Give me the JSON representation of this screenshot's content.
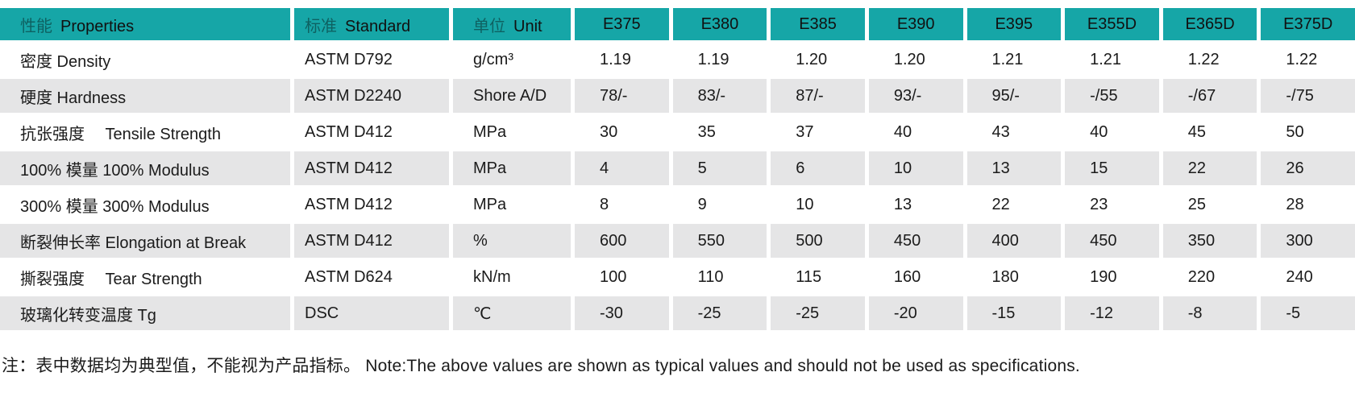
{
  "theme": {
    "header_bg": "#16a6a7",
    "row_alt_bg": "#e5e5e6",
    "row_bg": "#ffffff",
    "text_color": "#1b1b1b"
  },
  "table": {
    "header": {
      "properties": {
        "zh": "性能",
        "en": "Properties"
      },
      "standard": {
        "zh": "标准",
        "en": "Standard"
      },
      "unit": {
        "zh": "单位",
        "en": "Unit"
      },
      "grades": [
        "E375",
        "E380",
        "E385",
        "E390",
        "E395",
        "E355D",
        "E365D",
        "E375D"
      ]
    },
    "rows": [
      {
        "label": "密度  Density",
        "standard": "ASTM D792",
        "unit": "g/cm³",
        "values": [
          "1.19",
          "1.19",
          "1.20",
          "1.20",
          "1.21",
          "1.21",
          "1.22",
          "1.22"
        ]
      },
      {
        "label": "硬度  Hardness",
        "standard": "ASTM D2240",
        "unit": "Shore A/D",
        "values": [
          "78/-",
          "83/-",
          "87/-",
          "93/-",
          "95/-",
          "-/55",
          "-/67",
          "-/75"
        ]
      },
      {
        "label": "抗张强度　 Tensile Strength",
        "standard": "ASTM D412",
        "unit": "MPa",
        "values": [
          "30",
          "35",
          "37",
          "40",
          "43",
          "40",
          "45",
          "50"
        ]
      },
      {
        "label": "100% 模量  100% Modulus",
        "standard": "ASTM D412",
        "unit": "MPa",
        "values": [
          "4",
          "5",
          "6",
          "10",
          "13",
          "15",
          "22",
          "26"
        ]
      },
      {
        "label": "300% 模量  300% Modulus",
        "standard": "ASTM D412",
        "unit": "MPa",
        "values": [
          "8",
          "9",
          "10",
          "13",
          "22",
          "23",
          "25",
          "28"
        ]
      },
      {
        "label": "断裂伸长率  Elongation at Break",
        "standard": "ASTM D412",
        "unit": "%",
        "values": [
          "600",
          "550",
          "500",
          "450",
          "400",
          "450",
          "350",
          "300"
        ]
      },
      {
        "label": "撕裂强度　 Tear Strength",
        "standard": "ASTM D624",
        "unit": "kN/m",
        "values": [
          "100",
          "110",
          "115",
          "160",
          "180",
          "190",
          "220",
          "240"
        ]
      },
      {
        "label": "玻璃化转变温度  Tg",
        "standard": "DSC",
        "unit": "℃",
        "values": [
          "-30",
          "-25",
          "-25",
          "-20",
          "-15",
          "-12",
          "-8",
          "-5"
        ]
      }
    ]
  },
  "note": "注：表中数据均为典型值，不能视为产品指标。 Note:The above values are shown as typical values and should not be used as specifications."
}
